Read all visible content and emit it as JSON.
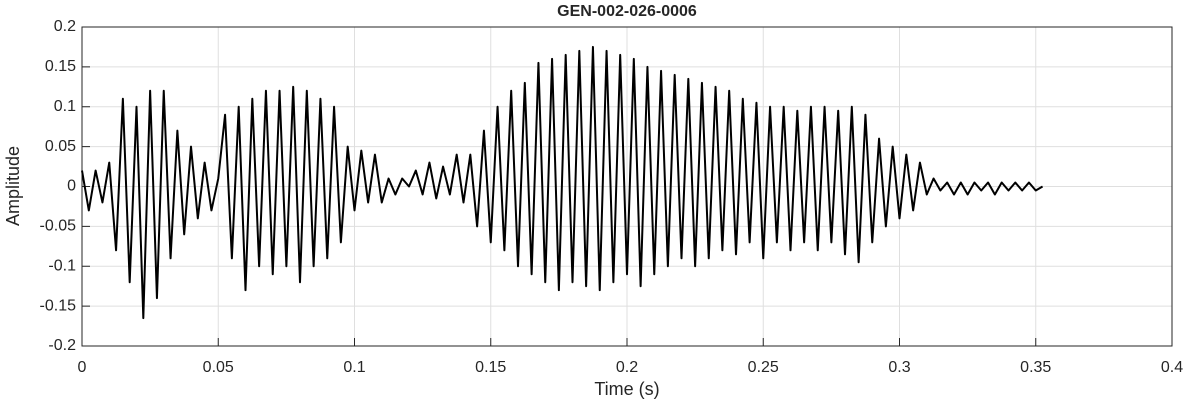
{
  "chart_data": {
    "type": "line",
    "title": "GEN-002-026-0006",
    "x_label": "Time (s)",
    "y_label": "Amplitude",
    "xlim": [
      0,
      0.4
    ],
    "xticks": [
      0,
      0.05,
      0.1,
      0.15,
      0.2,
      0.25,
      0.3,
      0.35,
      0.4
    ],
    "ylim": [
      -0.2,
      0.2
    ],
    "yticks": [
      -0.2,
      -0.15,
      -0.1,
      -0.05,
      0,
      0.05,
      0.1,
      0.15,
      0.2
    ],
    "grid": true,
    "x": [
      0,
      0.0025,
      0.005,
      0.0075,
      0.01,
      0.0125,
      0.015,
      0.0175,
      0.02,
      0.0225,
      0.025,
      0.0275,
      0.03,
      0.0325,
      0.035,
      0.0375,
      0.04,
      0.0425,
      0.045,
      0.0475,
      0.05,
      0.0525,
      0.055,
      0.0575,
      0.06,
      0.0625,
      0.065,
      0.0675,
      0.07,
      0.0725,
      0.075,
      0.0775,
      0.08,
      0.0825,
      0.085,
      0.0875,
      0.09,
      0.0925,
      0.095,
      0.0975,
      0.1,
      0.1025,
      0.105,
      0.1075,
      0.11,
      0.1125,
      0.115,
      0.1175,
      0.12,
      0.1225,
      0.125,
      0.1275,
      0.13,
      0.1325,
      0.135,
      0.1375,
      0.14,
      0.1425,
      0.145,
      0.1475,
      0.15,
      0.1525,
      0.155,
      0.1575,
      0.16,
      0.1625,
      0.165,
      0.1675,
      0.17,
      0.1725,
      0.175,
      0.1775,
      0.18,
      0.1825,
      0.185,
      0.1875,
      0.19,
      0.1925,
      0.195,
      0.1975,
      0.2,
      0.2025,
      0.205,
      0.2075,
      0.21,
      0.2125,
      0.215,
      0.2175,
      0.22,
      0.2225,
      0.225,
      0.2275,
      0.23,
      0.2325,
      0.235,
      0.2375,
      0.24,
      0.2425,
      0.245,
      0.2475,
      0.25,
      0.2525,
      0.255,
      0.2575,
      0.26,
      0.2625,
      0.265,
      0.2675,
      0.27,
      0.2725,
      0.275,
      0.2775,
      0.28,
      0.2825,
      0.285,
      0.2875,
      0.29,
      0.2925,
      0.295,
      0.2975,
      0.3,
      0.3025,
      0.305,
      0.3075,
      0.31,
      0.3125,
      0.315,
      0.3175,
      0.32,
      0.3225,
      0.325,
      0.3275,
      0.33,
      0.3325,
      0.335,
      0.3375,
      0.34,
      0.3425,
      0.345,
      0.3475,
      0.35,
      0.3525
    ],
    "series": [
      {
        "color": "#000000",
        "values": [
          0.02,
          -0.03,
          0.02,
          -0.02,
          0.03,
          -0.08,
          0.11,
          -0.12,
          0.1,
          -0.165,
          0.12,
          -0.14,
          0.12,
          -0.09,
          0.07,
          -0.06,
          0.05,
          -0.04,
          0.03,
          -0.03,
          0.01,
          0.09,
          -0.09,
          0.1,
          -0.13,
          0.11,
          -0.1,
          0.12,
          -0.11,
          0.12,
          -0.1,
          0.125,
          -0.12,
          0.12,
          -0.1,
          0.11,
          -0.09,
          0.1,
          -0.07,
          0.05,
          -0.03,
          0.045,
          -0.02,
          0.04,
          -0.02,
          0.01,
          -0.01,
          0.01,
          0,
          0.02,
          -0.01,
          0.03,
          -0.015,
          0.025,
          -0.01,
          0.04,
          -0.02,
          0.04,
          -0.05,
          0.07,
          -0.07,
          0.1,
          -0.08,
          0.12,
          -0.1,
          0.13,
          -0.11,
          0.155,
          -0.12,
          0.16,
          -0.13,
          0.165,
          -0.12,
          0.17,
          -0.125,
          0.175,
          -0.13,
          0.17,
          -0.12,
          0.165,
          -0.11,
          0.16,
          -0.125,
          0.15,
          -0.11,
          0.145,
          -0.1,
          0.14,
          -0.09,
          0.135,
          -0.1,
          0.13,
          -0.09,
          0.125,
          -0.08,
          0.12,
          -0.085,
          0.11,
          -0.07,
          0.105,
          -0.09,
          0.1,
          -0.07,
          0.1,
          -0.08,
          0.095,
          -0.07,
          0.1,
          -0.08,
          0.1,
          -0.07,
          0.095,
          -0.085,
          0.1,
          -0.095,
          0.09,
          -0.07,
          0.06,
          -0.05,
          0.05,
          -0.04,
          0.04,
          -0.03,
          0.03,
          -0.01,
          0.01,
          -0.005,
          0.005,
          -0.01,
          0.005,
          -0.01,
          0.005,
          -0.005,
          0.005,
          -0.01,
          0.005,
          -0.005,
          0.005,
          -0.005,
          0.005,
          -0.005,
          0
        ]
      }
    ]
  }
}
